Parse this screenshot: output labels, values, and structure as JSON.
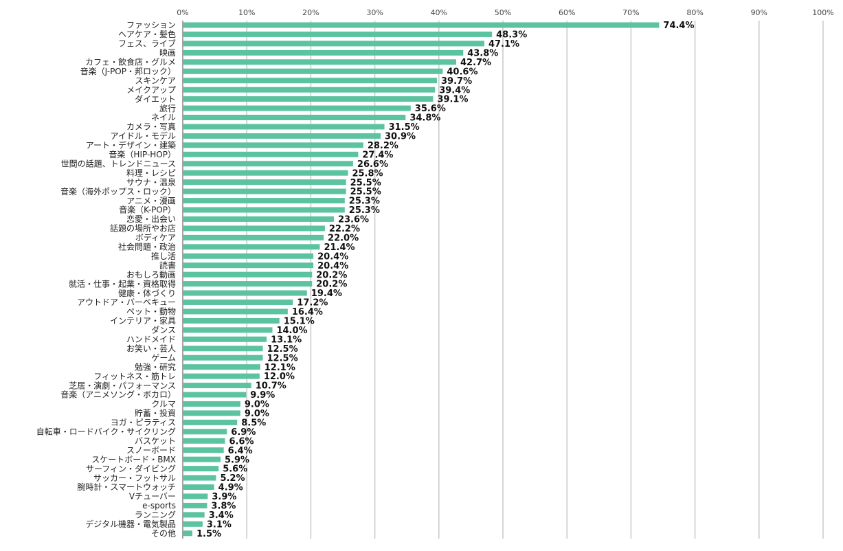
{
  "chart_data": {
    "type": "bar",
    "orientation": "horizontal",
    "title": "",
    "xlabel": "",
    "ylabel": "",
    "xlim": [
      0,
      100
    ],
    "x_ticks": [
      "0%",
      "10%",
      "20%",
      "30%",
      "40%",
      "50%",
      "60%",
      "70%",
      "80%",
      "90%",
      "100%"
    ],
    "grid": true,
    "bar_color": "#5cc3a0",
    "categories": [
      "ファッション",
      "ヘアケア・髪色",
      "フェス、ライブ",
      "映画",
      "カフェ・飲食店・グルメ",
      "音楽（J-POP・邦ロック）",
      "スキンケア",
      "メイクアップ",
      "ダイエット",
      "旅行",
      "ネイル",
      "カメラ・写真",
      "アイドル・モデル",
      "アート・デザイン・建築",
      "音楽（HIP-HOP）",
      "世間の話題、トレンドニュース",
      "料理・レシピ",
      "サウナ・温泉",
      "音楽（海外ポップス・ロック）",
      "アニメ・漫画",
      "音楽（K-POP）",
      "恋愛・出会い",
      "話題の場所やお店",
      "ボディケア",
      "社会問題・政治",
      "推し活",
      "読書",
      "おもしろ動画",
      "就活・仕事・起業・資格取得",
      "健康・体づくり",
      "アウトドア・バーベキュー",
      "ペット・動物",
      "インテリア・家具",
      "ダンス",
      "ハンドメイド",
      "お笑い・芸人",
      "ゲーム",
      "勉強・研究",
      "フィットネス・筋トレ",
      "芝居・演劇・パフォーマンス",
      "音楽（アニメソング・ボカロ）",
      "クルマ",
      "貯蓄・投資",
      "ヨガ・ピラティス",
      "自転車・ロードバイク・サイクリング",
      "バスケット",
      "スノーボード",
      "スケートボード・BMX",
      "サーフィン・ダイビング",
      "サッカー・フットサル",
      "腕時計・スマートウォッチ",
      "Vチューバー",
      "e-sports",
      "ランニング",
      "デジタル機器・電気製品",
      "その他"
    ],
    "values": [
      74.4,
      48.3,
      47.1,
      43.8,
      42.7,
      40.6,
      39.7,
      39.4,
      39.1,
      35.6,
      34.8,
      31.5,
      30.9,
      28.2,
      27.4,
      26.6,
      25.8,
      25.5,
      25.5,
      25.3,
      25.3,
      23.6,
      22.2,
      22.0,
      21.4,
      20.4,
      20.4,
      20.2,
      20.2,
      19.4,
      17.2,
      16.4,
      15.1,
      14.0,
      13.1,
      12.5,
      12.5,
      12.1,
      12.0,
      10.7,
      9.9,
      9.0,
      9.0,
      8.5,
      6.9,
      6.6,
      6.4,
      5.9,
      5.6,
      5.2,
      4.9,
      3.9,
      3.8,
      3.4,
      3.1,
      1.5
    ],
    "value_labels": [
      "74.4%",
      "48.3%",
      "47.1%",
      "43.8%",
      "42.7%",
      "40.6%",
      "39.7%",
      "39.4%",
      "39.1%",
      "35.6%",
      "34.8%",
      "31.5%",
      "30.9%",
      "28.2%",
      "27.4%",
      "26.6%",
      "25.8%",
      "25.5%",
      "25.5%",
      "25.3%",
      "25.3%",
      "23.6%",
      "22.2%",
      "22.0%",
      "21.4%",
      "20.4%",
      "20.4%",
      "20.2%",
      "20.2%",
      "19.4%",
      "17.2%",
      "16.4%",
      "15.1%",
      "14.0%",
      "13.1%",
      "12.5%",
      "12.5%",
      "12.1%",
      "12.0%",
      "10.7%",
      "9.9%",
      "9.0%",
      "9.0%",
      "8.5%",
      "6.9%",
      "6.6%",
      "6.4%",
      "5.9%",
      "5.6%",
      "5.2%",
      "4.9%",
      "3.9%",
      "3.8%",
      "3.4%",
      "3.1%",
      "1.5%"
    ]
  }
}
